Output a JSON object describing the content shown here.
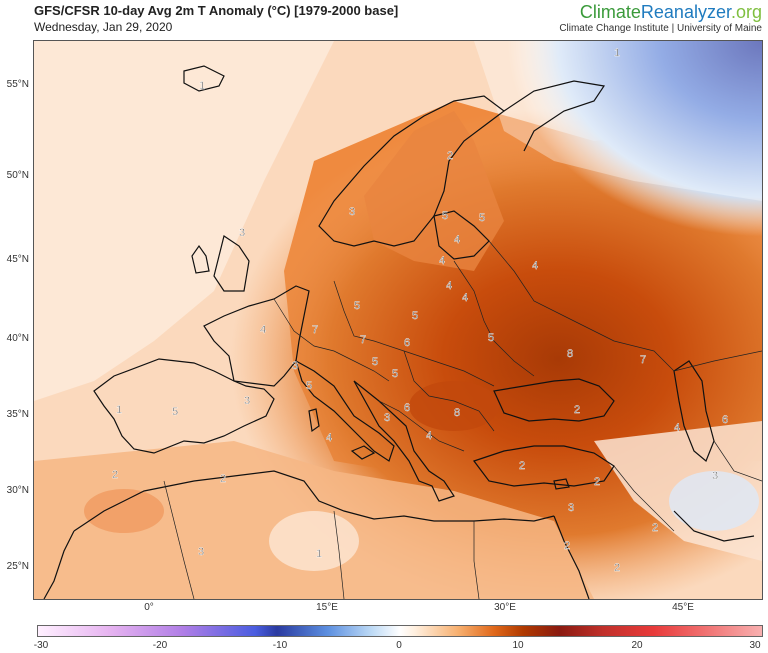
{
  "header": {
    "title": "GFS/CFSR 10-day Avg 2m T Anomaly (°C) [1979-2000 base]",
    "date": "Wednesday, Jan 29, 2020"
  },
  "brand": {
    "part1": "Climate",
    "part2": "Reanalyzer",
    "part3": ".org",
    "subtitle": "Climate Change Institute | University of Maine"
  },
  "map": {
    "lat_labels": [
      "55°N",
      "50°N",
      "45°N",
      "40°N",
      "35°N",
      "30°N",
      "25°N"
    ],
    "lon_labels": [
      "0°",
      "15°E",
      "30°E",
      "45°E"
    ],
    "contour_labels": [
      "1",
      "2",
      "3",
      "4",
      "5",
      "6",
      "7",
      "8"
    ],
    "colors": {
      "ocean_white": "#fff4ec",
      "light_orange": "#f7c49a",
      "orange": "#ef8a3f",
      "dark_orange": "#d45d14",
      "brown": "#a83a06",
      "blue": "#2a4ab0",
      "coast": "#111111"
    }
  },
  "colorbar": {
    "ticks": [
      "-30",
      "-20",
      "-10",
      "0",
      "10",
      "20",
      "30"
    ],
    "min": -30,
    "max": 30
  }
}
